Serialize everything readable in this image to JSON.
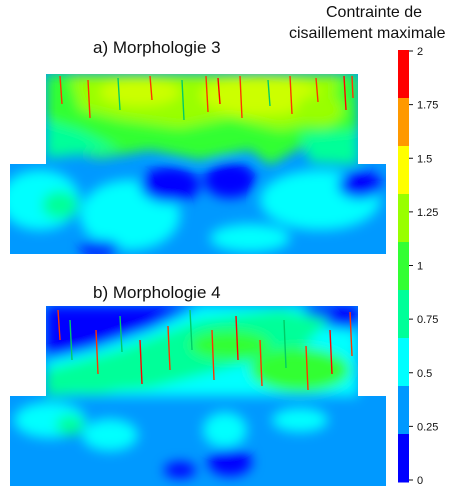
{
  "legend": {
    "title_line1": "Contrainte de",
    "title_line2": "cisaillement maximale",
    "ticks": [
      "2",
      "1.75",
      "1.5",
      "1.25",
      "1",
      "0.75",
      "0.5",
      "0.25",
      "0"
    ],
    "colors": [
      "#ff0000",
      "#ff9900",
      "#ffff00",
      "#99ff00",
      "#33ff33",
      "#00ff99",
      "#00ffff",
      "#0099ff",
      "#0000ff"
    ]
  },
  "panels": [
    {
      "title": "a) Morphologie 3"
    },
    {
      "title": "b) Morphologie 4"
    }
  ]
}
